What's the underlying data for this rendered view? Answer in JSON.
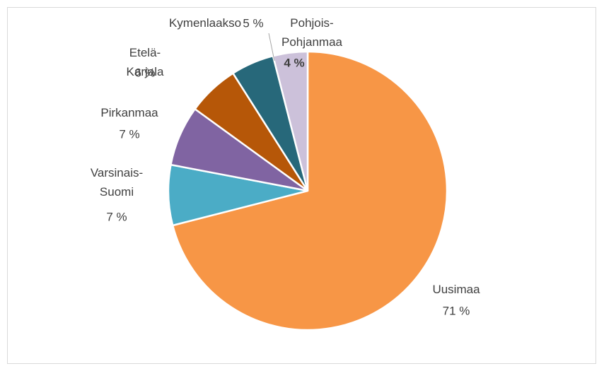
{
  "chart_data": {
    "type": "pie",
    "categories": [
      "Uusimaa",
      "Varsinais-Suomi",
      "Pirkanmaa",
      "Etelä-Karjala",
      "Kymenlaakso",
      "Pohjois-Pohjanmaa"
    ],
    "values": [
      71,
      7,
      7,
      6,
      5,
      4
    ],
    "value_labels": [
      "71 %",
      "7 %",
      "7 %",
      "6 %",
      "5 %",
      "4 %"
    ],
    "colors": [
      "#f79646",
      "#4bacc6",
      "#8064a2",
      "#b65708",
      "#27687a",
      "#ccc1da"
    ]
  }
}
